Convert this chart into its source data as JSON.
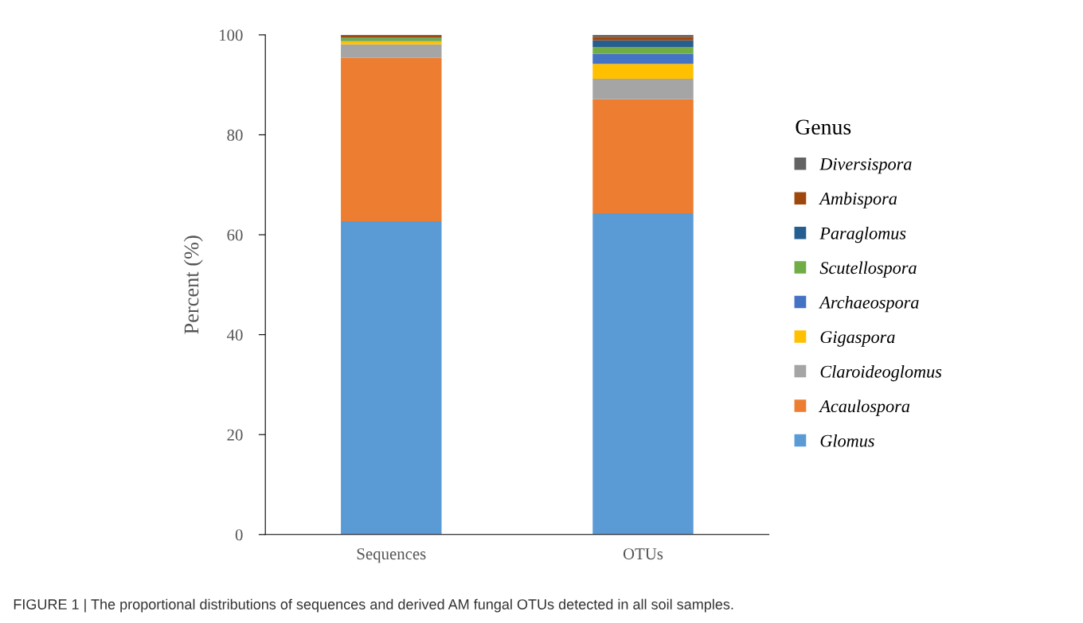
{
  "chart_data": {
    "type": "bar",
    "stacked": true,
    "ylabel": "Percent (%)",
    "legend_title": "Genus",
    "legend": "right",
    "categories": [
      "Sequences",
      "OTUs"
    ],
    "ylim": [
      0,
      100
    ],
    "yticks": [
      0,
      20,
      40,
      60,
      80,
      100
    ],
    "grid": false,
    "series": [
      {
        "name": "Glomus",
        "color": "#5b9bd5",
        "values": [
          62.7,
          64.3
        ]
      },
      {
        "name": "Acaulospora",
        "color": "#ed7d31",
        "values": [
          32.7,
          22.8
        ]
      },
      {
        "name": "Claroideoglomus",
        "color": "#a5a5a5",
        "values": [
          2.7,
          4.1
        ]
      },
      {
        "name": "Gigaspora",
        "color": "#ffc000",
        "values": [
          0.6,
          3.0
        ]
      },
      {
        "name": "Archaeospora",
        "color": "#4472c4",
        "values": [
          0.1,
          2.0
        ]
      },
      {
        "name": "Scutellospora",
        "color": "#70ad47",
        "values": [
          0.6,
          1.4
        ]
      },
      {
        "name": "Paraglomus",
        "color": "#255e91",
        "values": [
          0.1,
          1.3
        ]
      },
      {
        "name": "Ambispora",
        "color": "#9e480e",
        "values": [
          0.3,
          0.7
        ]
      },
      {
        "name": "Diversispora",
        "color": "#636363",
        "values": [
          0.2,
          0.4
        ]
      }
    ],
    "annotations": [
      "FIGURE 1 | The proportional distributions of sequences and derived AM fungal OTUs detected in all soil samples."
    ]
  }
}
